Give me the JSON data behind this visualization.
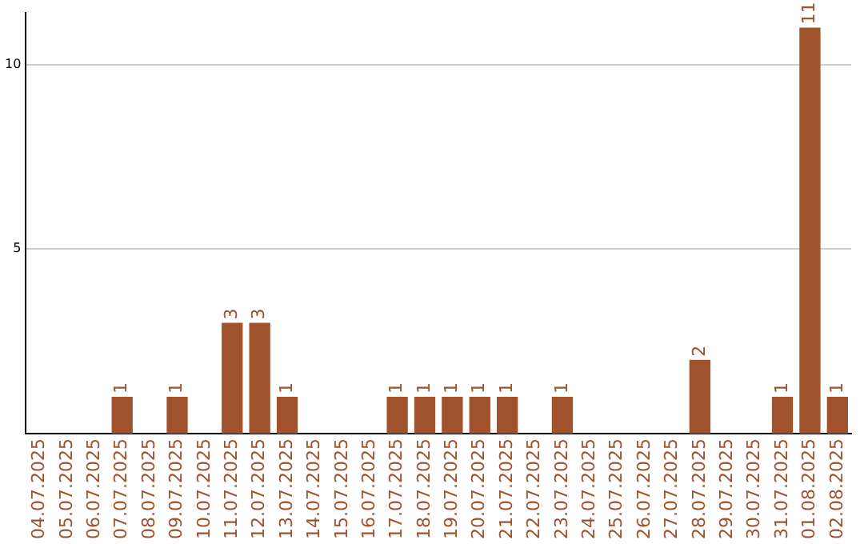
{
  "chart_data": {
    "type": "bar",
    "categories": [
      "04.07.2025",
      "05.07.2025",
      "06.07.2025",
      "07.07.2025",
      "08.07.2025",
      "09.07.2025",
      "10.07.2025",
      "11.07.2025",
      "12.07.2025",
      "13.07.2025",
      "14.07.2025",
      "15.07.2025",
      "16.07.2025",
      "17.07.2025",
      "18.07.2025",
      "19.07.2025",
      "20.07.2025",
      "21.07.2025",
      "22.07.2025",
      "23.07.2025",
      "24.07.2025",
      "25.07.2025",
      "26.07.2025",
      "27.07.2025",
      "28.07.2025",
      "29.07.2025",
      "30.07.2025",
      "31.07.2025",
      "01.08.2025",
      "02.08.2025"
    ],
    "values": [
      0,
      0,
      0,
      1,
      0,
      1,
      0,
      3,
      3,
      1,
      0,
      0,
      0,
      1,
      1,
      1,
      1,
      1,
      0,
      1,
      0,
      0,
      0,
      0,
      2,
      0,
      0,
      1,
      11,
      1
    ],
    "value_labels": [
      null,
      null,
      null,
      "1",
      null,
      "1",
      null,
      "3",
      "3",
      "1",
      null,
      null,
      null,
      "1",
      "1",
      "1",
      "1",
      "1",
      null,
      "1",
      null,
      null,
      null,
      null,
      "2",
      null,
      null,
      "1",
      "11",
      "1"
    ],
    "color": "#a0522d",
    "ylim": [
      0,
      11.4
    ],
    "yticks": [
      5,
      10
    ],
    "grid": "y",
    "legend": false
  }
}
